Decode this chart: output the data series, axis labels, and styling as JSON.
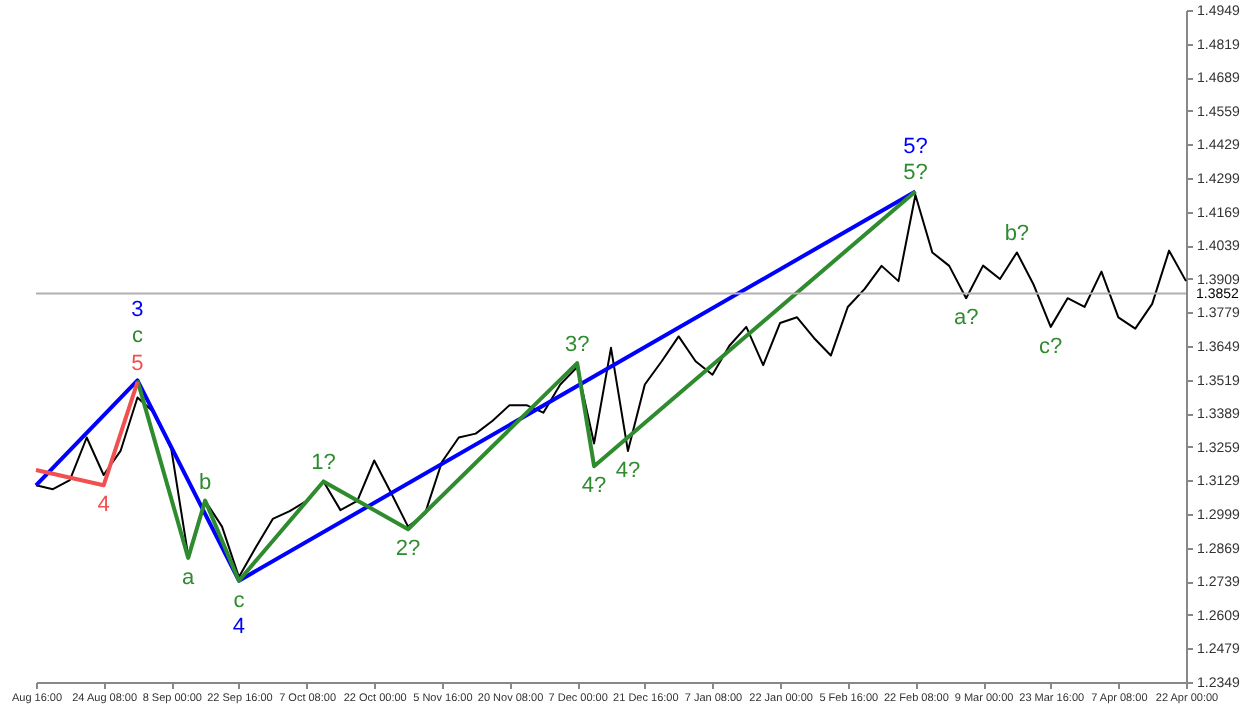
{
  "chart_data": {
    "type": "line",
    "categories": [
      "Aug 16:00",
      null,
      null,
      null,
      "24 Aug 08:00",
      null,
      null,
      null,
      "8 Sep 00:00",
      null,
      null,
      null,
      "22 Sep 16:00",
      null,
      null,
      null,
      "7 Oct 08:00",
      null,
      null,
      null,
      "22 Oct 00:00",
      null,
      null,
      null,
      "5 Nov 16:00",
      null,
      null,
      null,
      "20 Nov 08:00",
      null,
      null,
      null,
      "7 Dec 00:00",
      null,
      null,
      null,
      "21 Dec 16:00",
      null,
      null,
      null,
      "7 Jan 08:00",
      null,
      null,
      null,
      "22 Jan 00:00",
      null,
      null,
      null,
      "5 Feb 16:00",
      null,
      null,
      null,
      "22 Feb 08:00",
      null,
      null,
      null,
      "9 Mar 00:00",
      null,
      null,
      null,
      "23 Mar 16:00",
      null,
      null,
      null,
      "7 Apr 08:00",
      null,
      null,
      null,
      "22 Apr 00:00"
    ],
    "ylim": [
      1.2349,
      1.4949
    ],
    "yticks": [
      1.2349,
      1.2479,
      1.2609,
      1.2739,
      1.2869,
      1.2999,
      1.3129,
      1.3259,
      1.3389,
      1.3519,
      1.3649,
      1.3779,
      1.3909,
      1.4039,
      1.4169,
      1.4299,
      1.4429,
      1.4559,
      1.4689,
      1.4819,
      1.4949
    ],
    "grid": false,
    "marker": "none",
    "line_style": "solid",
    "series": [
      {
        "color": "#000000",
        "values": [
          1.311,
          1.3095,
          1.313,
          1.3295,
          1.315,
          1.3243,
          1.345,
          1.3391,
          1.325,
          1.2837,
          1.3051,
          1.295,
          1.2755,
          1.287,
          1.298,
          1.301,
          1.305,
          1.3125,
          1.3014,
          1.305,
          1.3206,
          1.308,
          1.295,
          1.3,
          1.32,
          1.3295,
          1.331,
          1.336,
          1.342,
          1.342,
          1.3391,
          1.35,
          1.3568,
          1.3272,
          1.3642,
          1.3243,
          1.35,
          1.359,
          1.3686,
          1.359,
          1.3538,
          1.365,
          1.3723,
          1.3575,
          1.3738,
          1.376,
          1.368,
          1.3612,
          1.38,
          1.387,
          1.3959,
          1.39,
          1.4233,
          1.4011,
          1.3959,
          1.3834,
          1.396,
          1.3908,
          1.4011,
          1.3885,
          1.3723,
          1.3834,
          1.38,
          1.3937,
          1.376,
          1.3716,
          1.3812,
          1.4018,
          1.39
        ]
      },
      {
        "color": "#0000ff",
        "values": [
          1.311,
          null,
          null,
          null,
          null,
          null,
          1.3516,
          null,
          null,
          null,
          null,
          null,
          1.2741,
          null,
          null,
          null,
          null,
          null,
          null,
          null,
          null,
          null,
          null,
          null,
          null,
          null,
          null,
          null,
          null,
          null,
          null,
          null,
          null,
          null,
          null,
          null,
          null,
          null,
          null,
          null,
          null,
          null,
          null,
          null,
          null,
          null,
          null,
          null,
          null,
          null,
          null,
          null,
          1.4247,
          null,
          null,
          null,
          null,
          null,
          null,
          null,
          null,
          null,
          null,
          null,
          null,
          null,
          null,
          null,
          null
        ]
      },
      {
        "color": "#2e8b2e",
        "values": [
          null,
          null,
          null,
          null,
          null,
          null,
          1.3516,
          null,
          null,
          1.2829,
          1.3051,
          null,
          1.2741,
          null,
          null,
          null,
          null,
          1.3125,
          null,
          null,
          null,
          null,
          1.294,
          null,
          null,
          null,
          null,
          null,
          null,
          null,
          null,
          null,
          1.3583,
          1.3184,
          null,
          null,
          null,
          null,
          null,
          null,
          null,
          null,
          null,
          null,
          null,
          null,
          null,
          null,
          null,
          null,
          null,
          null,
          1.4247,
          null,
          null,
          null,
          null,
          null,
          null,
          null,
          null,
          null,
          null,
          null,
          null,
          null,
          null,
          null,
          null
        ]
      },
      {
        "color": "#f05050",
        "values": [
          1.3169,
          null,
          null,
          null,
          1.311,
          null,
          1.3509,
          null,
          null,
          null,
          null,
          null,
          null,
          null,
          null,
          null,
          null,
          null,
          null,
          null,
          null,
          null,
          null,
          null,
          null,
          null,
          null,
          null,
          null,
          null,
          null,
          null,
          null,
          null,
          null,
          null,
          null,
          null,
          null,
          null,
          null,
          null,
          null,
          null,
          null,
          null,
          null,
          null,
          null,
          null,
          null,
          null,
          null,
          null,
          null,
          null,
          null,
          null,
          null,
          null,
          null,
          null,
          null,
          null,
          null,
          null,
          null,
          null,
          null
        ]
      }
    ],
    "ref_lines": [
      {
        "axis": "y",
        "value": 1.3852,
        "label": "1.3852",
        "color": "#b0b0b0"
      }
    ],
    "annotations": [
      "3",
      "c",
      "5",
      "4",
      "a",
      "b",
      "c",
      "4",
      "1?",
      "2?",
      "3?",
      "4?",
      "4?",
      "5?",
      "5?",
      "a?",
      "b?",
      "c?"
    ]
  }
}
